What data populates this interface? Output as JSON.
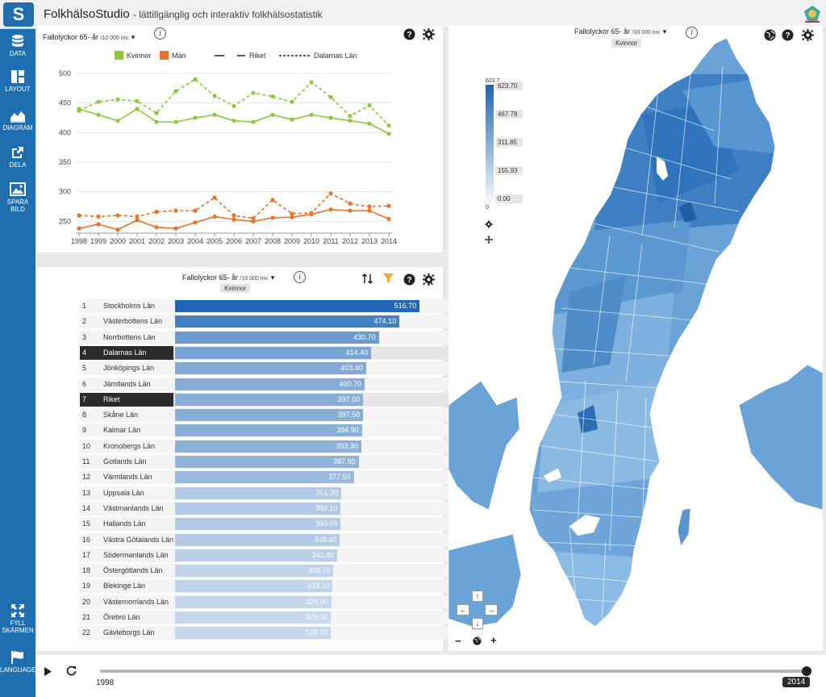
{
  "header": {
    "title": "FolkhälsoStudio",
    "subtitle": "- lättillgänglig och interaktiv folkhälsostatistik",
    "logo_letter": "S"
  },
  "sidebar": {
    "top": [
      {
        "label": "DATA",
        "icon": "database-icon"
      },
      {
        "label": "LAYOUT",
        "icon": "layout-icon"
      },
      {
        "label": "DIAGRAM",
        "icon": "area-chart-icon"
      },
      {
        "label": "DELA",
        "icon": "share-icon"
      },
      {
        "label": "SPARA",
        "label2": "BILD",
        "icon": "image-icon"
      }
    ],
    "bottom": [
      {
        "label": "FYLL",
        "label2": "SKÄRMEN",
        "icon": "fullscreen-icon"
      },
      {
        "label": "LANGUAGE",
        "icon": "flag-icon"
      }
    ]
  },
  "line_panel": {
    "title": "Fallolyckor 65- år",
    "unit": "/10 000 inv.",
    "colors": {
      "kvinnor": "#8cc63f",
      "man": "#e8732c"
    }
  },
  "bar_panel": {
    "title": "Fallolyckor 65- år",
    "unit": "/10 000 inv.",
    "tag": "Kvinnor",
    "filter_color": "#f5a623"
  },
  "map_panel": {
    "title": "Fallolyckor 65- år",
    "unit": "/10 000 inv.",
    "tag": "Kvinnor",
    "legend": {
      "top": "623.7",
      "bottom": "0",
      "ticks": [
        "623.70",
        "467.78",
        "311.85",
        "155.93",
        "0.00"
      ],
      "color_low": "#eef4fb",
      "color_high": "#1f65b0"
    }
  },
  "chart_data": [
    {
      "type": "line",
      "title": "Fallolyckor 65- år /10 000 inv.",
      "x": [
        1998,
        1999,
        2000,
        2001,
        2002,
        2003,
        2004,
        2005,
        2006,
        2007,
        2008,
        2009,
        2010,
        2011,
        2012,
        2013,
        2014
      ],
      "ylim": [
        230,
        500
      ],
      "yticks": [
        250,
        300,
        350,
        400,
        450,
        500
      ],
      "legend": [
        "Kvinnor",
        "Män",
        "Riket",
        "Dalarnas Län"
      ],
      "series": [
        {
          "name": "Kvinnor · Riket",
          "color": "#8cc63f",
          "dash": false,
          "values": [
            440,
            430,
            420,
            440,
            418,
            418,
            425,
            430,
            420,
            418,
            430,
            422,
            430,
            425,
            420,
            415,
            398
          ]
        },
        {
          "name": "Kvinnor · Dalarnas Län",
          "color": "#8cc63f",
          "dash": true,
          "values": [
            437,
            452,
            456,
            453,
            433,
            470,
            490,
            462,
            445,
            467,
            461,
            452,
            485,
            460,
            428,
            446,
            412
          ]
        },
        {
          "name": "Män · Riket",
          "color": "#e8732c",
          "dash": false,
          "values": [
            238,
            245,
            236,
            252,
            240,
            238,
            248,
            258,
            253,
            250,
            256,
            257,
            262,
            270,
            268,
            268,
            254
          ]
        },
        {
          "name": "Män · Dalarnas Län",
          "color": "#e8732c",
          "dash": true,
          "values": [
            260,
            258,
            260,
            258,
            266,
            268,
            268,
            290,
            260,
            255,
            286,
            263,
            264,
            297,
            280,
            275,
            276
          ]
        }
      ]
    },
    {
      "type": "bar",
      "title": "Fallolyckor 65- år /10 000 inv.",
      "series_name": "Kvinnor",
      "xlim": [
        0,
        623.7
      ],
      "rows": [
        {
          "rank": "1",
          "name": "Stockholms Län",
          "value": 516.7,
          "label": "516.70"
        },
        {
          "rank": "2",
          "name": "Västerbottens Län",
          "value": 474.1,
          "label": "474.10"
        },
        {
          "rank": "3",
          "name": "Norrbottens Län",
          "value": 430.7,
          "label": "430.70"
        },
        {
          "rank": "4",
          "name": "Dalarnas Län",
          "value": 414.4,
          "label": "414.40",
          "highlight": true
        },
        {
          "rank": "5",
          "name": "Jönköpings Län",
          "value": 403.4,
          "label": "403.40"
        },
        {
          "rank": "6",
          "name": "Jämtlands Län",
          "value": 400.7,
          "label": "400.70"
        },
        {
          "rank": "7",
          "name": "Riket",
          "value": 397.5,
          "label": "397.50",
          "highlight": true
        },
        {
          "rank": "8",
          "name": "Skåne Län",
          "value": 397.5,
          "label": "397.50"
        },
        {
          "rank": "9",
          "name": "Kalmar Län",
          "value": 394.9,
          "label": "394.90"
        },
        {
          "rank": "10",
          "name": "Kronobergs Län",
          "value": 393.3,
          "label": "393.30"
        },
        {
          "rank": "11",
          "name": "Gotlands Län",
          "value": 387.9,
          "label": "387.90"
        },
        {
          "rank": "12",
          "name": "Värmlands Län",
          "value": 377.5,
          "label": "377.50"
        },
        {
          "rank": "13",
          "name": "Uppsala Län",
          "value": 351.3,
          "label": "351.30"
        },
        {
          "rank": "14",
          "name": "Västmanlands Län",
          "value": 350.1,
          "label": "350.10"
        },
        {
          "rank": "15",
          "name": "Hallands Län",
          "value": 350.0,
          "label": "350.00"
        },
        {
          "rank": "16",
          "name": "Västra Götalands Län",
          "value": 348.4,
          "label": "348.40"
        },
        {
          "rank": "17",
          "name": "Södermanlands Län",
          "value": 342.8,
          "label": "342.80"
        },
        {
          "rank": "18",
          "name": "Östergötlands Län",
          "value": 334.7,
          "label": "334.70"
        },
        {
          "rank": "19",
          "name": "Blekinge Län",
          "value": 333.1,
          "label": "333.10"
        },
        {
          "rank": "20",
          "name": "Västernorrlands Län",
          "value": 329.9,
          "label": "329.90"
        },
        {
          "rank": "21",
          "name": "Örebro Län",
          "value": 329.0,
          "label": "329.00"
        },
        {
          "rank": "22",
          "name": "Gävleborgs Län",
          "value": 328.7,
          "label": "328.70"
        }
      ]
    }
  ],
  "timeline": {
    "start": "1998",
    "end": "2014",
    "position": 1.0
  }
}
